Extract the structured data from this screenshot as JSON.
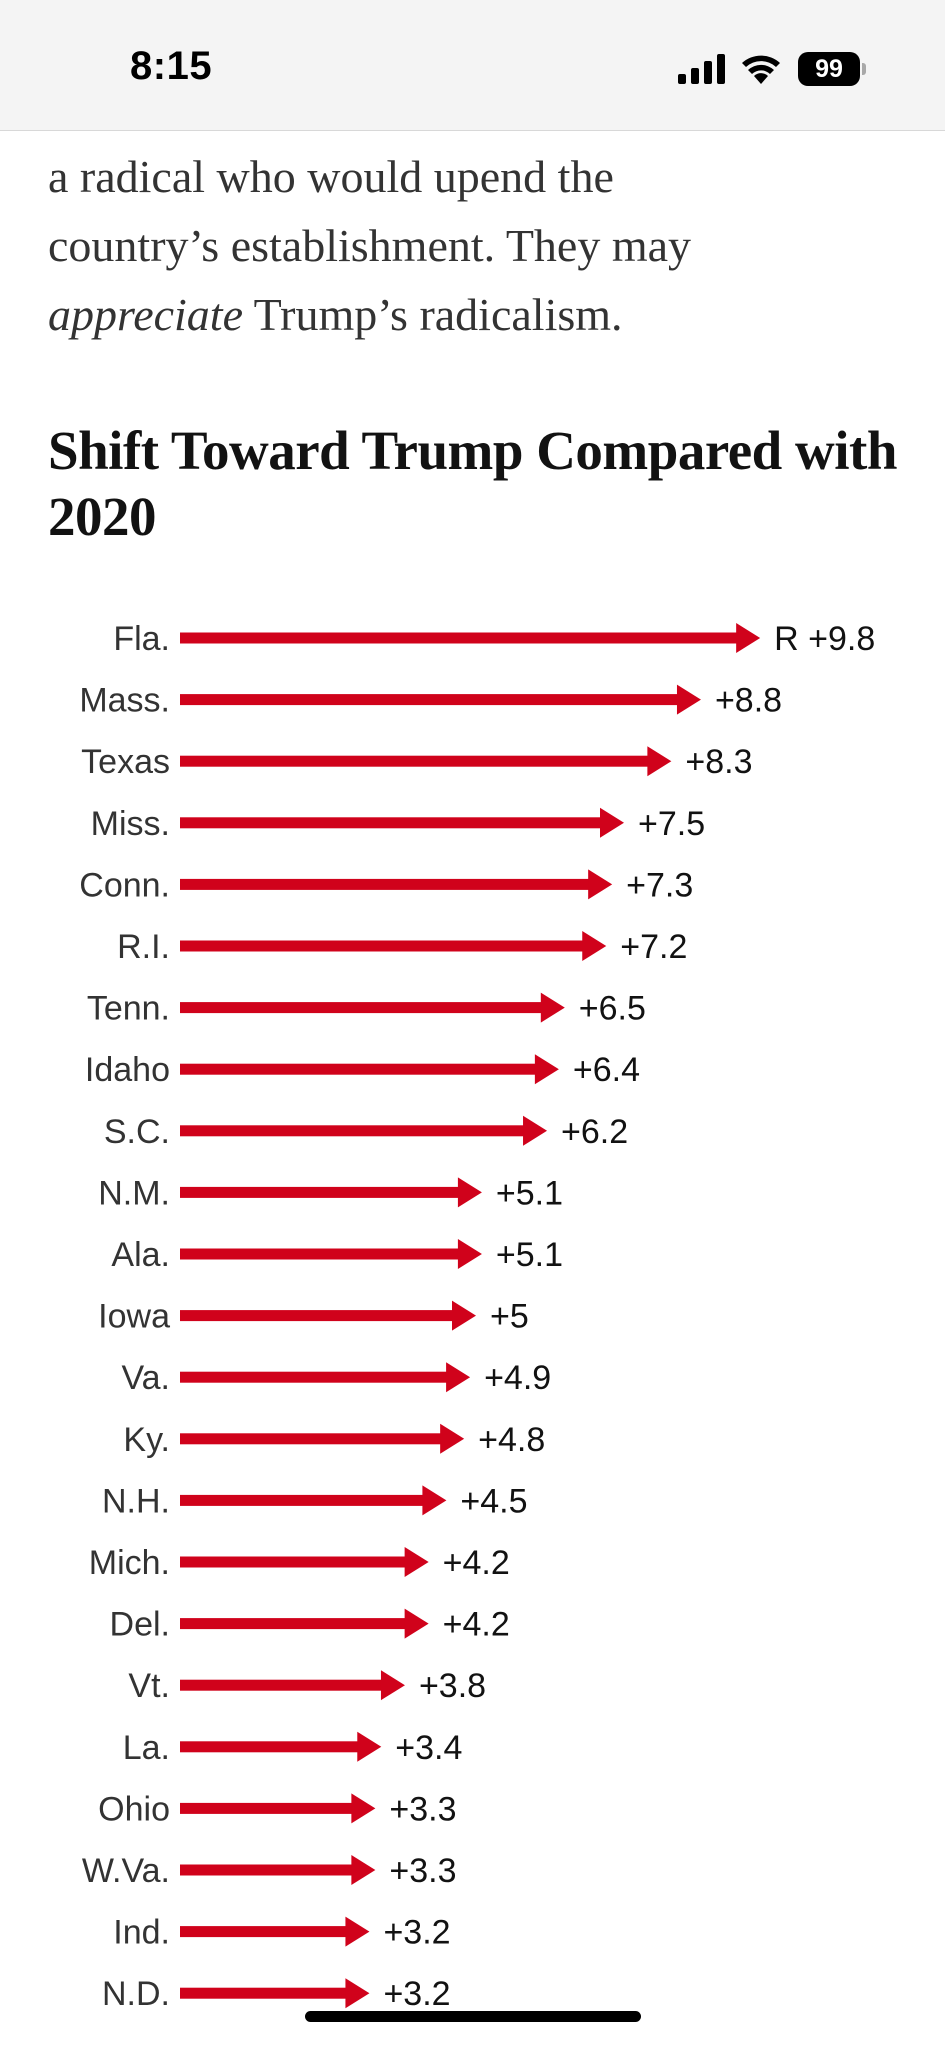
{
  "status_bar": {
    "time": "8:15",
    "battery": "99",
    "icons": [
      "signal-icon",
      "wifi-icon",
      "battery-icon"
    ]
  },
  "article": {
    "line1": "a radical who would upend the",
    "line2": "country’s establishment. They may",
    "line3_em": "appreciate",
    "line3_rest": " Trump’s radicalism."
  },
  "chart_title": "Shift Toward Trump Compared with 2020",
  "chart_data": {
    "type": "bar",
    "title": "Shift Toward Trump Compared with 2020",
    "orientation": "horizontal",
    "marker": "arrow",
    "color": "#d0021b",
    "first_value_prefix": "R ",
    "categories": [
      "Fla.",
      "Mass.",
      "Texas",
      "Miss.",
      "Conn.",
      "R.I.",
      "Tenn.",
      "Idaho",
      "S.C.",
      "N.M.",
      "Ala.",
      "Iowa",
      "Va.",
      "Ky.",
      "N.H.",
      "Mich.",
      "Del.",
      "Vt.",
      "La.",
      "Ohio",
      "W.Va.",
      "Ind.",
      "N.D."
    ],
    "values": [
      9.8,
      8.8,
      8.3,
      7.5,
      7.3,
      7.2,
      6.5,
      6.4,
      6.2,
      5.1,
      5.1,
      5,
      4.9,
      4.8,
      4.5,
      4.2,
      4.2,
      3.8,
      3.4,
      3.3,
      3.3,
      3.2,
      3.2
    ],
    "labels": [
      "R +9.8",
      "+8.8",
      "+8.3",
      "+7.5",
      "+7.3",
      "+7.2",
      "+6.5",
      "+6.4",
      "+6.2",
      "+5.1",
      "+5.1",
      "+5",
      "+4.9",
      "+4.8",
      "+4.5",
      "+4.2",
      "+4.2",
      "+3.8",
      "+3.4",
      "+3.3",
      "+3.3",
      "+3.2",
      "+3.2"
    ],
    "xlim": [
      0,
      10
    ]
  }
}
